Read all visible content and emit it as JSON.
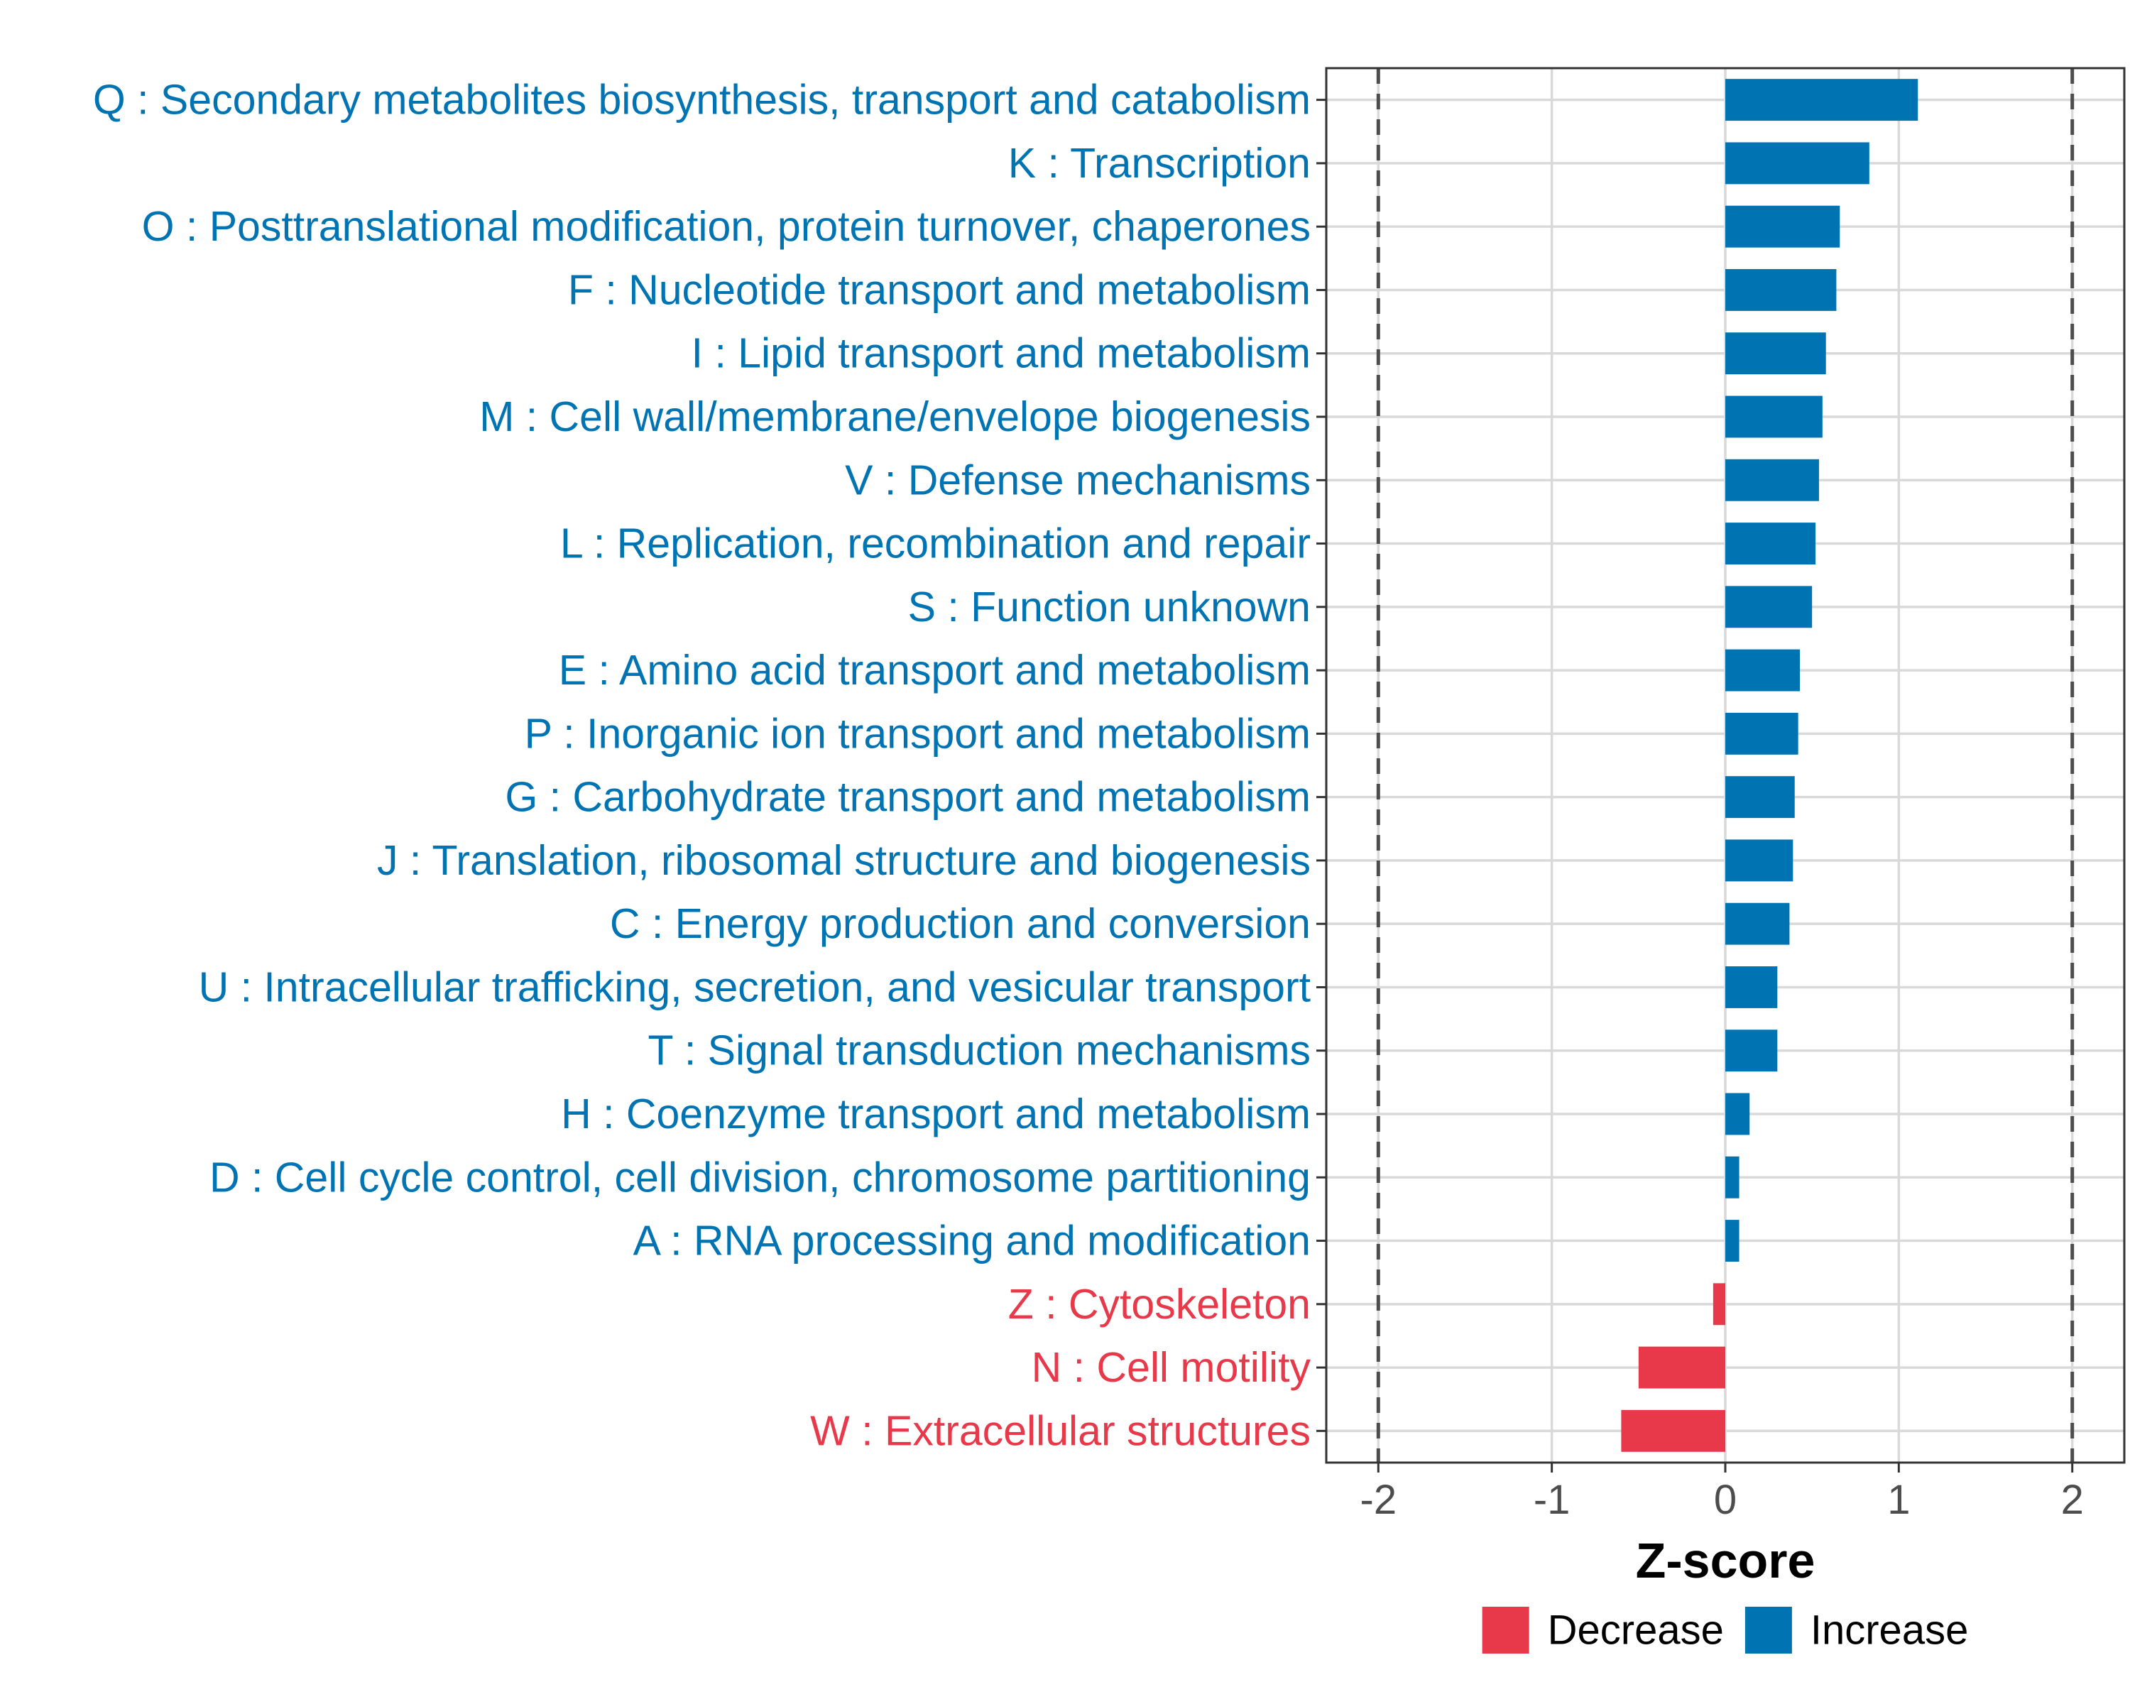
{
  "colors": {
    "increase": "#0073B3",
    "decrease": "#E8394A",
    "grid": "#d9d9d9",
    "panel_border": "#333333",
    "threshold_line": "#4d4d4d"
  },
  "chart_data": {
    "type": "bar",
    "orientation": "horizontal",
    "title": "",
    "xlabel": "Z-score",
    "ylabel": "",
    "xlim": [
      -2.3,
      2.3
    ],
    "x_ticks": [
      -2,
      -1,
      0,
      1,
      2
    ],
    "x_tick_labels": [
      "-2",
      "-1",
      "0",
      "1",
      "2"
    ],
    "threshold_lines": [
      -2,
      2
    ],
    "grid": true,
    "legend_position": "bottom",
    "legend": [
      {
        "label": "Decrease",
        "color_key": "decrease"
      },
      {
        "label": "Increase",
        "color_key": "increase"
      }
    ],
    "categories": [
      "Q : Secondary metabolites biosynthesis, transport and catabolism",
      "K : Transcription",
      "O : Posttranslational modification, protein turnover, chaperones",
      "F : Nucleotide transport and metabolism",
      "I : Lipid transport and metabolism",
      "M : Cell wall/membrane/envelope biogenesis",
      "V : Defense mechanisms",
      "L : Replication, recombination and repair",
      "S : Function unknown",
      "E : Amino acid transport and metabolism",
      "P : Inorganic ion transport and metabolism",
      "G : Carbohydrate transport and metabolism",
      "J : Translation, ribosomal structure and biogenesis",
      "C : Energy production and conversion",
      "U : Intracellular trafficking, secretion, and vesicular transport",
      "T : Signal transduction mechanisms",
      "H : Coenzyme transport and metabolism",
      "D : Cell cycle control, cell division, chromosome partitioning",
      "A : RNA processing and modification",
      "Z : Cytoskeleton",
      "N : Cell motility",
      "W : Extracellular structures"
    ],
    "values": [
      1.11,
      0.83,
      0.66,
      0.64,
      0.58,
      0.56,
      0.54,
      0.52,
      0.5,
      0.43,
      0.42,
      0.4,
      0.39,
      0.37,
      0.3,
      0.3,
      0.14,
      0.08,
      0.08,
      -0.07,
      -0.5,
      -0.6
    ],
    "groups": [
      "Increase",
      "Increase",
      "Increase",
      "Increase",
      "Increase",
      "Increase",
      "Increase",
      "Increase",
      "Increase",
      "Increase",
      "Increase",
      "Increase",
      "Increase",
      "Increase",
      "Increase",
      "Increase",
      "Increase",
      "Increase",
      "Increase",
      "Decrease",
      "Decrease",
      "Decrease"
    ]
  }
}
